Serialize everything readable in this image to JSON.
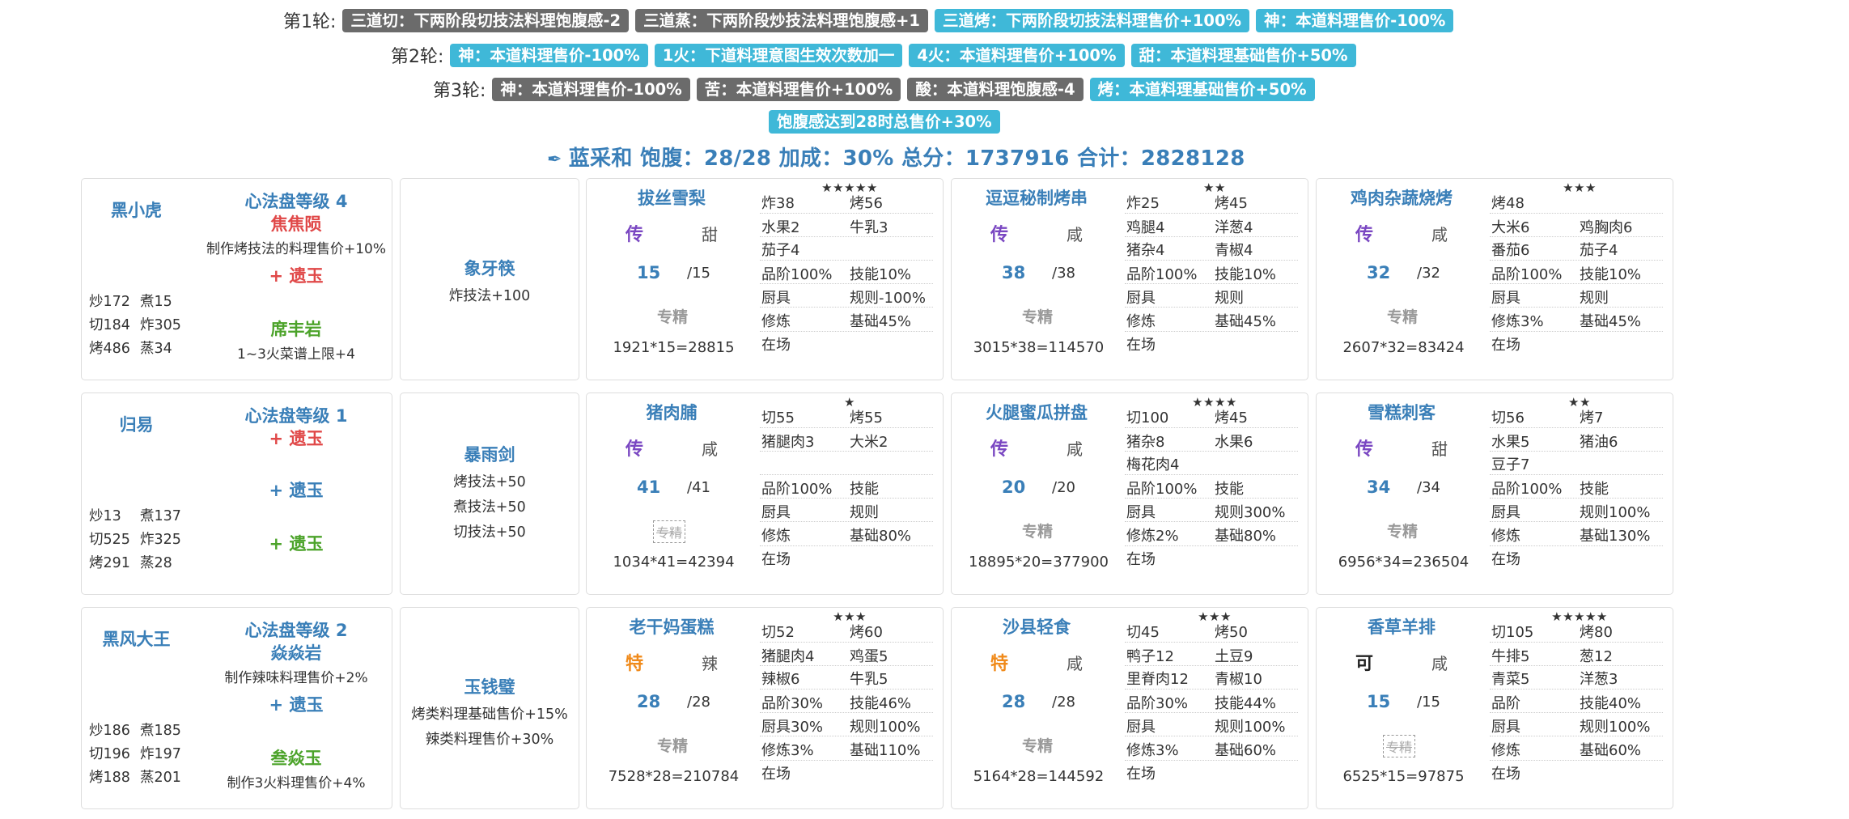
{
  "rounds": [
    {
      "label": "第1轮:",
      "tags": [
        {
          "text": "三道切：下两阶段切技法料理饱腹感-2",
          "color": "gray"
        },
        {
          "text": "三道蒸：下两阶段炒技法料理饱腹感+1",
          "color": "gray"
        },
        {
          "text": "三道烤：下两阶段切技法料理售价+100%",
          "color": "blue"
        },
        {
          "text": "神：本道料理售价-100%",
          "color": "blue"
        }
      ]
    },
    {
      "label": "第2轮:",
      "tags": [
        {
          "text": "神：本道料理售价-100%",
          "color": "blue"
        },
        {
          "text": "1火：下道料理意图生效次数加一",
          "color": "blue"
        },
        {
          "text": "4火：本道料理售价+100%",
          "color": "blue"
        },
        {
          "text": "甜：本道料理基础售价+50%",
          "color": "blue"
        }
      ]
    },
    {
      "label": "第3轮:",
      "tags": [
        {
          "text": "神：本道料理售价-100%",
          "color": "gray"
        },
        {
          "text": "苦：本道料理售价+100%",
          "color": "gray"
        },
        {
          "text": "酸：本道料理饱腹感-4",
          "color": "gray"
        },
        {
          "text": "烤：本道料理基础售价+50%",
          "color": "blue"
        }
      ]
    },
    {
      "label": "",
      "tags": [
        {
          "text": "饱腹感达到28时总售价+30%",
          "color": "blue"
        }
      ]
    }
  ],
  "summary": "蓝采和 饱腹：28/28 加成：30% 总分：1737916 合计：2828128",
  "summary_icon": "quill-icon",
  "rows": [
    {
      "chef": {
        "name": "黑小虎",
        "level": "心法盘等级 4",
        "jades": [
          {
            "name": "焦焦陨",
            "color": "red",
            "note": "制作烤技法的料理售价+10%"
          },
          {
            "name": "+ 遗玉",
            "color": "red",
            "note": ""
          },
          {
            "name": "席丰岩",
            "color": "green",
            "note": "1~3火菜谱上限+4"
          }
        ],
        "stats": [
          [
            "炒172",
            "煮15"
          ],
          [
            "切184",
            "炸305"
          ],
          [
            "烤486",
            "蒸34"
          ]
        ]
      },
      "equip": {
        "name": "象牙筷",
        "lines": [
          "炸技法+100"
        ]
      },
      "recipes": [
        {
          "name": "拔丝雪梨",
          "stars": "★★★★★",
          "rarity": "传",
          "rarity_color": "purple",
          "taste": "甜",
          "count": "15",
          "max": "/15",
          "spec": "专精",
          "spec_crossed": false,
          "calc": "1921*15=28815",
          "cells": [
            [
              "炸38",
              "烤56"
            ],
            [
              "水果2",
              "牛乳3"
            ],
            [
              "茄子4",
              ""
            ],
            [
              "品阶100%",
              "技能10%"
            ],
            [
              "厨具",
              "规则-100%"
            ],
            [
              "修炼",
              "基础45%"
            ],
            [
              "在场",
              ""
            ]
          ]
        },
        {
          "name": "逗逗秘制烤串",
          "stars": "★★",
          "rarity": "传",
          "rarity_color": "purple",
          "taste": "咸",
          "count": "38",
          "max": "/38",
          "spec": "专精",
          "spec_crossed": false,
          "calc": "3015*38=114570",
          "cells": [
            [
              "炸25",
              "烤45"
            ],
            [
              "鸡腿4",
              "洋葱4"
            ],
            [
              "猪杂4",
              "青椒4"
            ],
            [
              "品阶100%",
              "技能10%"
            ],
            [
              "厨具",
              "规则"
            ],
            [
              "修炼",
              "基础45%"
            ],
            [
              "在场",
              ""
            ]
          ]
        },
        {
          "name": "鸡肉杂蔬烧烤",
          "stars": "★★★",
          "rarity": "传",
          "rarity_color": "purple",
          "taste": "咸",
          "count": "32",
          "max": "/32",
          "spec": "专精",
          "spec_crossed": false,
          "calc": "2607*32=83424",
          "cells": [
            [
              "烤48",
              ""
            ],
            [
              "大米6",
              "鸡胸肉6"
            ],
            [
              "番茄6",
              "茄子4"
            ],
            [
              "品阶100%",
              "技能10%"
            ],
            [
              "厨具",
              "规则"
            ],
            [
              "修炼3%",
              "基础45%"
            ],
            [
              "在场",
              ""
            ]
          ]
        }
      ]
    },
    {
      "chef": {
        "name": "归易",
        "level": "心法盘等级 1",
        "jades": [
          {
            "name": "+ 遗玉",
            "color": "red",
            "note": ""
          },
          {
            "name": "+ 遗玉",
            "color": "blue",
            "note": ""
          },
          {
            "name": "+ 遗玉",
            "color": "green",
            "note": ""
          }
        ],
        "stats": [
          [
            "炒13",
            "煮137"
          ],
          [
            "切525",
            "炸325"
          ],
          [
            "烤291",
            "蒸28"
          ]
        ]
      },
      "equip": {
        "name": "暴雨剑",
        "lines": [
          "烤技法+50",
          "煮技法+50",
          "切技法+50"
        ]
      },
      "recipes": [
        {
          "name": "猪肉脯",
          "stars": "★",
          "rarity": "传",
          "rarity_color": "purple",
          "taste": "咸",
          "count": "41",
          "max": "/41",
          "spec": "专精",
          "spec_crossed": true,
          "calc": "1034*41=42394",
          "cells": [
            [
              "切55",
              "烤55"
            ],
            [
              "猪腿肉3",
              "大米2"
            ],
            [
              "",
              ""
            ],
            [
              "品阶100%",
              "技能"
            ],
            [
              "厨具",
              "规则"
            ],
            [
              "修炼",
              "基础80%"
            ],
            [
              "在场",
              ""
            ]
          ]
        },
        {
          "name": "火腿蜜瓜拼盘",
          "stars": "★★★★",
          "rarity": "传",
          "rarity_color": "purple",
          "taste": "咸",
          "count": "20",
          "max": "/20",
          "spec": "专精",
          "spec_crossed": false,
          "calc": "18895*20=377900",
          "cells": [
            [
              "切100",
              "烤45"
            ],
            [
              "猪杂8",
              "水果6"
            ],
            [
              "梅花肉4",
              ""
            ],
            [
              "品阶100%",
              "技能"
            ],
            [
              "厨具",
              "规则300%"
            ],
            [
              "修炼2%",
              "基础80%"
            ],
            [
              "在场",
              ""
            ]
          ]
        },
        {
          "name": "雪糕刺客",
          "stars": "★★",
          "rarity": "传",
          "rarity_color": "purple",
          "taste": "甜",
          "count": "34",
          "max": "/34",
          "spec": "专精",
          "spec_crossed": false,
          "calc": "6956*34=236504",
          "cells": [
            [
              "切56",
              "烤7"
            ],
            [
              "水果5",
              "猪油6"
            ],
            [
              "豆子7",
              ""
            ],
            [
              "品阶100%",
              "技能"
            ],
            [
              "厨具",
              "规则100%"
            ],
            [
              "修炼",
              "基础130%"
            ],
            [
              "在场",
              ""
            ]
          ]
        }
      ]
    },
    {
      "chef": {
        "name": "黑风大王",
        "level": "心法盘等级 2",
        "jades": [
          {
            "name": "焱焱岩",
            "color": "blue",
            "note": "制作辣味料理售价+2%"
          },
          {
            "name": "+ 遗玉",
            "color": "blue",
            "note": ""
          },
          {
            "name": "叁焱玉",
            "color": "green",
            "note": "制作3火料理售价+4%"
          }
        ],
        "stats": [
          [
            "炒186",
            "煮185"
          ],
          [
            "切196",
            "炸197"
          ],
          [
            "烤188",
            "蒸201"
          ]
        ]
      },
      "equip": {
        "name": "玉钱璧",
        "lines": [
          "烤类料理基础售价+15%",
          "辣类料理售价+30%"
        ]
      },
      "recipes": [
        {
          "name": "老干妈蛋糕",
          "stars": "★★★",
          "rarity": "特",
          "rarity_color": "orange",
          "taste": "辣",
          "count": "28",
          "max": "/28",
          "spec": "专精",
          "spec_crossed": false,
          "calc": "7528*28=210784",
          "cells": [
            [
              "切52",
              "烤60"
            ],
            [
              "猪腿肉4",
              "鸡蛋5"
            ],
            [
              "辣椒6",
              "牛乳5"
            ],
            [
              "品阶30%",
              "技能46%"
            ],
            [
              "厨具30%",
              "规则100%"
            ],
            [
              "修炼3%",
              "基础110%"
            ],
            [
              "在场",
              ""
            ]
          ]
        },
        {
          "name": "沙县轻食",
          "stars": "★★★",
          "rarity": "特",
          "rarity_color": "orange",
          "taste": "咸",
          "count": "28",
          "max": "/28",
          "spec": "专精",
          "spec_crossed": false,
          "calc": "5164*28=144592",
          "cells": [
            [
              "切45",
              "烤50"
            ],
            [
              "鸭子12",
              "土豆9"
            ],
            [
              "里脊肉12",
              "青椒10"
            ],
            [
              "品阶30%",
              "技能44%"
            ],
            [
              "厨具",
              "规则100%"
            ],
            [
              "修炼3%",
              "基础60%"
            ],
            [
              "在场",
              ""
            ]
          ]
        },
        {
          "name": "香草羊排",
          "stars": "★★★★★",
          "rarity": "可",
          "rarity_color": "black",
          "taste": "咸",
          "count": "15",
          "max": "/15",
          "spec": "专精",
          "spec_crossed": true,
          "calc": "6525*15=97875",
          "cells": [
            [
              "切105",
              "烤80"
            ],
            [
              "牛排5",
              "葱12"
            ],
            [
              "青菜5",
              "洋葱3"
            ],
            [
              "品阶",
              "技能40%"
            ],
            [
              "厨具",
              "规则100%"
            ],
            [
              "修炼",
              "基础60%"
            ],
            [
              "在场",
              ""
            ]
          ]
        }
      ]
    }
  ]
}
